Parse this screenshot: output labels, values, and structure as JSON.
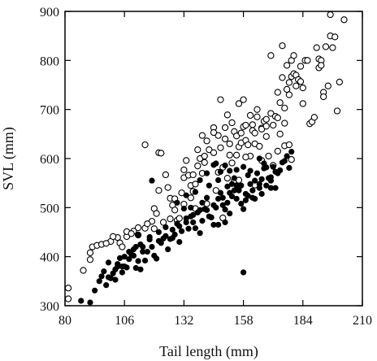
{
  "chart_data": {
    "type": "scatter",
    "title": "",
    "xlabel": "Tail length (mm)",
    "ylabel": "SVL (mm)",
    "xlim": [
      80,
      210
    ],
    "ylim": [
      300,
      900
    ],
    "xticks": [
      80,
      106,
      132,
      158,
      184,
      210
    ],
    "yticks": [
      300,
      400,
      500,
      600,
      700,
      800,
      900
    ],
    "grid": false,
    "legend": "none",
    "series": [
      {
        "marker": "open-circle",
        "color": "#000000",
        "points": [
          [
            81,
            336
          ],
          [
            81,
            314
          ],
          [
            88,
            372
          ],
          [
            91,
            408
          ],
          [
            91,
            394
          ],
          [
            92,
            420
          ],
          [
            94,
            423
          ],
          [
            96,
            425
          ],
          [
            100,
            431
          ],
          [
            103,
            439
          ],
          [
            104,
            428
          ],
          [
            105,
            420
          ],
          [
            107,
            441
          ],
          [
            110,
            452
          ],
          [
            112,
            444
          ],
          [
            115,
            458
          ],
          [
            118,
            472
          ],
          [
            119,
            498
          ],
          [
            120,
            488
          ],
          [
            121,
            535
          ],
          [
            121,
            612
          ],
          [
            122,
            611
          ],
          [
            124,
            567
          ],
          [
            125,
            541
          ],
          [
            126,
            519
          ],
          [
            127,
            505
          ],
          [
            128,
            495
          ],
          [
            129,
            474
          ],
          [
            130,
            478
          ],
          [
            131,
            530
          ],
          [
            132,
            561
          ],
          [
            132,
            577
          ],
          [
            133,
            596
          ],
          [
            134,
            566
          ],
          [
            135,
            545
          ],
          [
            136,
            533
          ],
          [
            137,
            548
          ],
          [
            138,
            585
          ],
          [
            138,
            618
          ],
          [
            139,
            600
          ],
          [
            140,
            647
          ],
          [
            140,
            570
          ],
          [
            141,
            592
          ],
          [
            142,
            636
          ],
          [
            143,
            618
          ],
          [
            145,
            612
          ],
          [
            145,
            663
          ],
          [
            147,
            572
          ],
          [
            147,
            647
          ],
          [
            148,
            622
          ],
          [
            148,
            720
          ],
          [
            149,
            582
          ],
          [
            150,
            640
          ],
          [
            151,
            689
          ],
          [
            152,
            630
          ],
          [
            152,
            607
          ],
          [
            153,
            591
          ],
          [
            154,
            655
          ],
          [
            155,
            607
          ],
          [
            155,
            646
          ],
          [
            156,
            624
          ],
          [
            156,
            712
          ],
          [
            157,
            652
          ],
          [
            157,
            632
          ],
          [
            158,
            665
          ],
          [
            158,
            720
          ],
          [
            159,
            637
          ],
          [
            160,
            628
          ],
          [
            161,
            605
          ],
          [
            162,
            657
          ],
          [
            162,
            669
          ],
          [
            163,
            630
          ],
          [
            164,
            700
          ],
          [
            164,
            685
          ],
          [
            165,
            625
          ],
          [
            166,
            662
          ],
          [
            167,
            676
          ],
          [
            168,
            645
          ],
          [
            168,
            680
          ],
          [
            169,
            605
          ],
          [
            170,
            692
          ],
          [
            170,
            810
          ],
          [
            171,
            668
          ],
          [
            172,
            686
          ],
          [
            173,
            735
          ],
          [
            173,
            683
          ],
          [
            174,
            650
          ],
          [
            174,
            714
          ],
          [
            175,
            765
          ],
          [
            175,
            830
          ],
          [
            176,
            672
          ],
          [
            176,
            703
          ],
          [
            177,
            741
          ],
          [
            177,
            790
          ],
          [
            178,
            755
          ],
          [
            178,
            730
          ],
          [
            179,
            767
          ],
          [
            179,
            800
          ],
          [
            180,
            810
          ],
          [
            180,
            773
          ],
          [
            181,
            770
          ],
          [
            181,
            748
          ],
          [
            182,
            761
          ],
          [
            183,
            757
          ],
          [
            183,
            788
          ],
          [
            184,
            744
          ],
          [
            184,
            712
          ],
          [
            185,
            800
          ],
          [
            186,
            800
          ],
          [
            187,
            671
          ],
          [
            188,
            675
          ],
          [
            189,
            684
          ],
          [
            190,
            826
          ],
          [
            191,
            803
          ],
          [
            191,
            785
          ],
          [
            192,
            800
          ],
          [
            192,
            790
          ],
          [
            193,
            735
          ],
          [
            193,
            726
          ],
          [
            194,
            828
          ],
          [
            195,
            748
          ],
          [
            196,
            850
          ],
          [
            196,
            900
          ],
          [
            197,
            826
          ],
          [
            198,
            848
          ],
          [
            199,
            697
          ],
          [
            200,
            756
          ],
          [
            202,
            883
          ],
          [
            119,
            457
          ],
          [
            115,
            628
          ],
          [
            123,
            470
          ],
          [
            126,
            477
          ],
          [
            132,
            507
          ],
          [
            135,
            520
          ],
          [
            137,
            498
          ],
          [
            142,
            508
          ],
          [
            146,
            535
          ],
          [
            149,
            479
          ],
          [
            151,
            560
          ],
          [
            154,
            555
          ],
          [
            156,
            556
          ],
          [
            159,
            603
          ],
          [
            161,
            688
          ],
          [
            163,
            546
          ],
          [
            166,
            596
          ],
          [
            171,
            586
          ],
          [
            173,
            615
          ],
          [
            176,
            626
          ],
          [
            178,
            628
          ],
          [
            179,
            598
          ],
          [
            128,
            518
          ],
          [
            136,
            567
          ],
          [
            141,
            605
          ],
          [
            145,
            653
          ],
          [
            150,
            663
          ],
          [
            153,
            673
          ],
          [
            159,
            668
          ],
          [
            163,
            652
          ],
          [
            166,
            660
          ],
          [
            168,
            666
          ],
          [
            98,
            427
          ],
          [
            101,
            441
          ],
          [
            107,
            451
          ],
          [
            109,
            447
          ],
          [
            112,
            459
          ],
          [
            116,
            467
          ]
        ]
      },
      {
        "marker": "filled-circle",
        "color": "#000000",
        "points": [
          [
            87,
            310
          ],
          [
            91,
            304
          ],
          [
            93,
            331
          ],
          [
            95,
            350
          ],
          [
            96,
            360
          ],
          [
            98,
            342
          ],
          [
            99,
            388
          ],
          [
            100,
            356
          ],
          [
            101,
            366
          ],
          [
            102,
            374
          ],
          [
            103,
            380
          ],
          [
            104,
            397
          ],
          [
            105,
            368
          ],
          [
            106,
            380
          ],
          [
            107,
            378
          ],
          [
            108,
            395
          ],
          [
            109,
            405
          ],
          [
            110,
            402
          ],
          [
            111,
            377
          ],
          [
            112,
            391
          ],
          [
            113,
            374
          ],
          [
            114,
            420
          ],
          [
            115,
            392
          ],
          [
            116,
            410
          ],
          [
            117,
            435
          ],
          [
            118,
            420
          ],
          [
            119,
            402
          ],
          [
            120,
            396
          ],
          [
            121,
            432
          ],
          [
            122,
            428
          ],
          [
            123,
            437
          ],
          [
            124,
            442
          ],
          [
            125,
            415
          ],
          [
            126,
            436
          ],
          [
            127,
            438
          ],
          [
            128,
            445
          ],
          [
            129,
            467
          ],
          [
            130,
            430
          ],
          [
            131,
            452
          ],
          [
            132,
            498
          ],
          [
            133,
            470
          ],
          [
            134,
            457
          ],
          [
            135,
            482
          ],
          [
            136,
            470
          ],
          [
            137,
            458
          ],
          [
            138,
            490
          ],
          [
            139,
            448
          ],
          [
            140,
            473
          ],
          [
            141,
            497
          ],
          [
            142,
            520
          ],
          [
            143,
            482
          ],
          [
            144,
            480
          ],
          [
            145,
            465
          ],
          [
            146,
            500
          ],
          [
            147,
            518
          ],
          [
            148,
            530
          ],
          [
            149,
            505
          ],
          [
            150,
            496
          ],
          [
            151,
            510
          ],
          [
            152,
            488
          ],
          [
            153,
            523
          ],
          [
            154,
            560
          ],
          [
            155,
            518
          ],
          [
            156,
            540
          ],
          [
            157,
            545
          ],
          [
            158,
            497
          ],
          [
            159,
            528
          ],
          [
            160,
            566
          ],
          [
            161,
            548
          ],
          [
            162,
            520
          ],
          [
            163,
            555
          ],
          [
            164,
            570
          ],
          [
            165,
            548
          ],
          [
            166,
            558
          ],
          [
            167,
            580
          ],
          [
            168,
            582
          ],
          [
            169,
            560
          ],
          [
            170,
            540
          ],
          [
            171,
            583
          ],
          [
            172,
            573
          ],
          [
            173,
            570
          ],
          [
            174,
            576
          ],
          [
            175,
            592
          ],
          [
            176,
            595
          ],
          [
            177,
            605
          ],
          [
            178,
            581
          ],
          [
            179,
            614
          ],
          [
            158,
            368
          ],
          [
            150,
            470
          ],
          [
            147,
            465
          ],
          [
            140,
            510
          ],
          [
            135,
            500
          ],
          [
            133,
            525
          ],
          [
            129,
            510
          ],
          [
            118,
            555
          ],
          [
            142,
            570
          ],
          [
            146,
            590
          ],
          [
            150,
            586
          ],
          [
            152,
            575
          ],
          [
            155,
            577
          ],
          [
            158,
            583
          ],
          [
            161,
            575
          ],
          [
            165,
            600
          ],
          [
            167,
            590
          ],
          [
            170,
            562
          ],
          [
            139,
            556
          ],
          [
            145,
            587
          ],
          [
            148,
            573
          ],
          [
            153,
            548
          ],
          [
            156,
            535
          ],
          [
            160,
            524
          ],
          [
            163,
            518
          ],
          [
            166,
            528
          ],
          [
            170,
            555
          ],
          [
            172,
            540
          ],
          [
            137,
            532
          ],
          [
            143,
            545
          ],
          [
            147,
            556
          ],
          [
            151,
            543
          ],
          [
            154,
            535
          ],
          [
            157,
            508
          ],
          [
            159,
            515
          ],
          [
            162,
            535
          ],
          [
            165,
            540
          ],
          [
            168,
            545
          ],
          [
            110,
            415
          ],
          [
            113,
            425
          ],
          [
            117,
            440
          ],
          [
            121,
            450
          ],
          [
            124,
            460
          ],
          [
            127,
            455
          ],
          [
            130,
            462
          ],
          [
            133,
            478
          ],
          [
            136,
            485
          ],
          [
            139,
            495
          ],
          [
            142,
            495
          ],
          [
            145,
            505
          ],
          [
            149,
            520
          ],
          [
            152,
            530
          ],
          [
            155,
            545
          ],
          [
            97,
            370
          ],
          [
            103,
            385
          ],
          [
            106,
            400
          ],
          [
            108,
            410
          ],
          [
            111,
            420
          ],
          [
            114,
            410
          ],
          [
            99,
            358
          ],
          [
            102,
            353
          ],
          [
            105,
            380
          ],
          [
            112,
            445
          ]
        ]
      }
    ]
  }
}
